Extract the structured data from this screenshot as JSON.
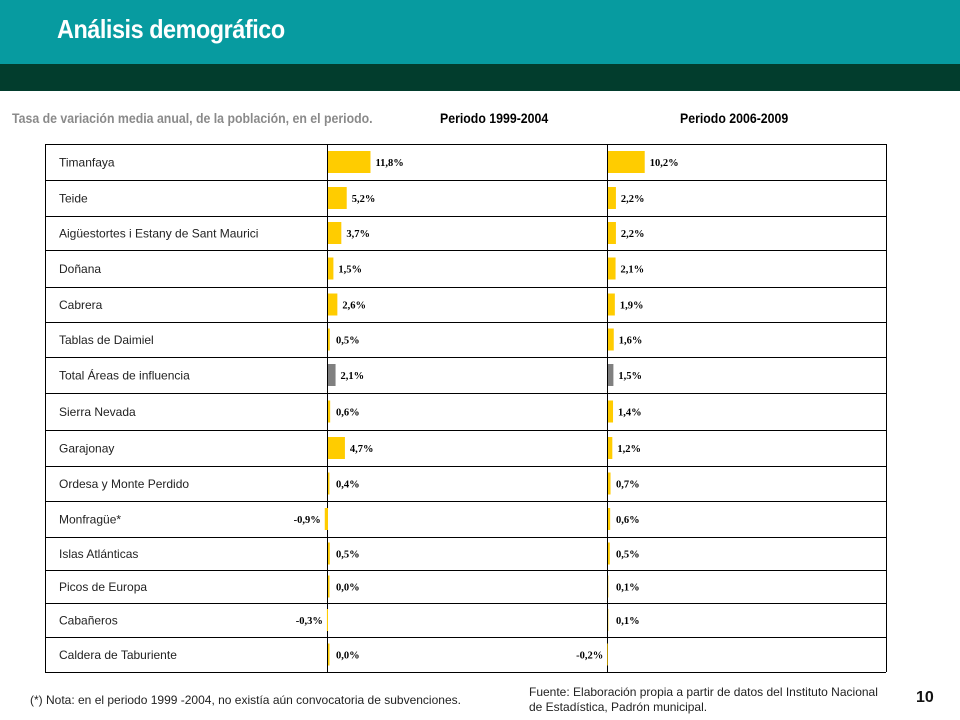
{
  "header": {
    "title": "Análisis demográfico",
    "subtitle": "Tasa de variación media anual, de la población, en el periodo.",
    "period_1": "Periodo 1999-2004",
    "period_2": "Periodo 2006-2009"
  },
  "colors": {
    "header_band": "#079ba0",
    "header_stripe": "#023d2d",
    "bar": "#ffcc00",
    "total_bar": "#808080",
    "grid": "#000000"
  },
  "chart_data": [
    {
      "type": "bar",
      "orientation": "horizontal",
      "title": "Periodo 1999-2004",
      "categories": [
        "Timanfaya",
        "Teide",
        "Aigüestortes i Estany de Sant Maurici",
        "Doñana",
        "Cabrera",
        "Tablas de Daimiel",
        "Total Áreas de influencia",
        "Sierra Nevada",
        "Garajonay",
        "Ordesa y Monte Perdido",
        "Monfragüe*",
        "Islas Atlánticas",
        "Picos de Europa",
        "Cabañeros",
        "Caldera de Taburiente"
      ],
      "values": [
        11.8,
        5.2,
        3.7,
        1.5,
        2.6,
        0.5,
        2.1,
        0.6,
        4.7,
        0.4,
        -0.9,
        0.5,
        0.0,
        -0.3,
        0.0
      ],
      "labels": [
        "11,8%",
        "5,2%",
        "3,7%",
        "1,5%",
        "2,6%",
        "0,5%",
        "2,1%",
        "0,6%",
        "4,7%",
        "0,4%",
        "-0,9%",
        "0,5%",
        "0,0%",
        "-0,3%",
        "0,0%"
      ],
      "highlight": "Total Áreas de influencia"
    },
    {
      "type": "bar",
      "orientation": "horizontal",
      "title": "Periodo 2006-2009",
      "categories": [
        "Timanfaya",
        "Teide",
        "Aigüestortes i Estany de Sant Maurici",
        "Doñana",
        "Cabrera",
        "Tablas de Daimiel",
        "Total Áreas de influencia",
        "Sierra Nevada",
        "Garajonay",
        "Ordesa y Monte Perdido",
        "Monfragüe*",
        "Islas Atlánticas",
        "Picos de Europa",
        "Cabañeros",
        "Caldera de Taburiente"
      ],
      "values": [
        10.2,
        2.2,
        2.2,
        2.1,
        1.9,
        1.6,
        1.5,
        1.4,
        1.2,
        0.7,
        0.6,
        0.5,
        0.1,
        0.1,
        -0.2
      ],
      "labels": [
        "10,2%",
        "2,2%",
        "2,2%",
        "2,1%",
        "1,9%",
        "1,6%",
        "1,5%",
        "1,4%",
        "1,2%",
        "0,7%",
        "0,6%",
        "0,5%",
        "0,1%",
        "0,1%",
        "-0,2%"
      ],
      "highlight": "Total Áreas de influencia"
    }
  ],
  "footer": {
    "note": "(*) Nota: en el periodo 1999 -2004, no existía aún convocatoria de subvenciones.",
    "source": "Fuente: Elaboración propia a partir de datos del Instituto Nacional de Estadística, Padrón municipal.",
    "page": "10"
  }
}
